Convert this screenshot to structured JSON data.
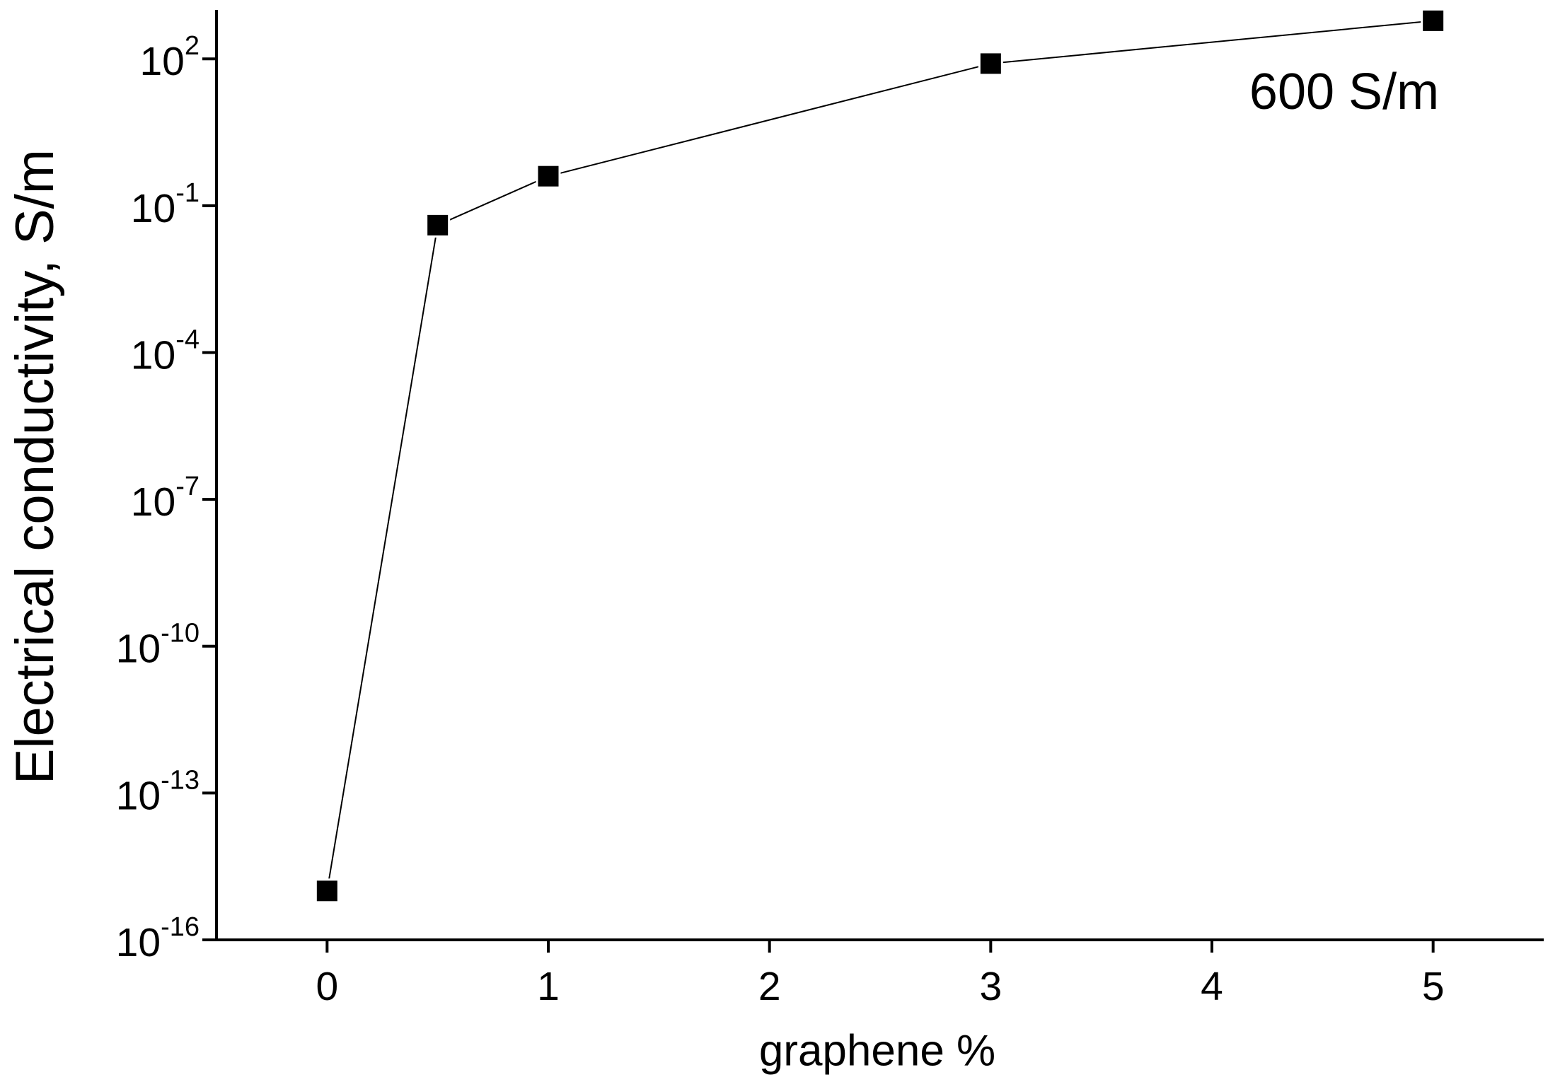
{
  "chart_data": {
    "type": "line",
    "x": [
      0,
      0.5,
      1,
      3,
      5
    ],
    "series": [
      {
        "color": "#000000",
        "values": [
          1e-15,
          0.04,
          0.4,
          80,
          600
        ]
      }
    ],
    "xlabel": "graphene %",
    "ylabel": "Electrical conductivity, S/m",
    "annotation": "600 S/m",
    "xlim": [
      -0.5,
      5.5
    ],
    "xticks": [
      0,
      1,
      2,
      3,
      4,
      5
    ],
    "ylim": [
      1e-16,
      1000
    ],
    "yscale": "log",
    "yticks": [
      {
        "value": 1e-16,
        "label": "10",
        "sup": "-16"
      },
      {
        "value": 1e-13,
        "label": "10",
        "sup": "-13"
      },
      {
        "value": 1e-10,
        "label": "10",
        "sup": "-10"
      },
      {
        "value": 1e-07,
        "label": "10",
        "sup": "-7"
      },
      {
        "value": 0.0001,
        "label": "10",
        "sup": "-4"
      },
      {
        "value": 0.1,
        "label": "10",
        "sup": "-1"
      },
      {
        "value": 100,
        "label": "10",
        "sup": "2"
      }
    ],
    "grid": false
  }
}
